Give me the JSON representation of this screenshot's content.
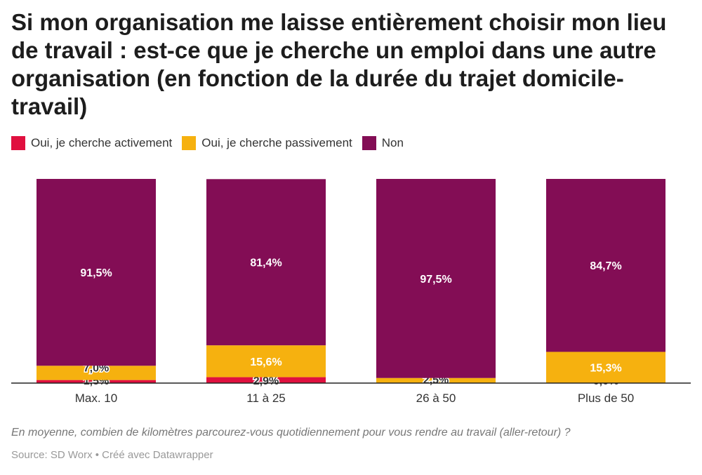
{
  "title": "Si mon organisation me laisse entièrement choisir mon lieu de travail : est-ce que je cherche un emploi dans une autre organisation (en fonction de la durée du trajet domicile-travail)",
  "legend": [
    {
      "label": "Oui, je cherche activement",
      "color": "#e0103f"
    },
    {
      "label": "Oui, je cherche passivement",
      "color": "#f6b10f"
    },
    {
      "label": "Non",
      "color": "#830d55"
    }
  ],
  "note": "En moyenne, combien de kilomètres parcourez-vous quotidiennement pour vous rendre au travail (aller-retour) ?",
  "source": "Source: SD Worx • Créé avec Datawrapper",
  "chart_data": {
    "type": "bar",
    "stacked": true,
    "categories": [
      "Max. 10",
      "11 à 25",
      "26 à 50",
      "Plus de 50"
    ],
    "series": [
      {
        "name": "Oui, je cherche activement",
        "color": "#e0103f",
        "values": [
          1.5,
          2.9,
          0.0,
          0.0
        ],
        "labels": [
          "1,5%",
          "2,9%",
          "",
          "0,0%"
        ]
      },
      {
        "name": "Oui, je cherche passivement",
        "color": "#f6b10f",
        "values": [
          7.0,
          15.6,
          2.5,
          15.3
        ],
        "labels": [
          "7,0%",
          "15,6%",
          "2,5%",
          "15,3%"
        ]
      },
      {
        "name": "Non",
        "color": "#830d55",
        "values": [
          91.5,
          81.4,
          97.5,
          84.7
        ],
        "labels": [
          "91,5%",
          "81,4%",
          "97,5%",
          "84,7%"
        ]
      }
    ],
    "ylim": [
      0,
      100
    ],
    "unit": "%"
  }
}
